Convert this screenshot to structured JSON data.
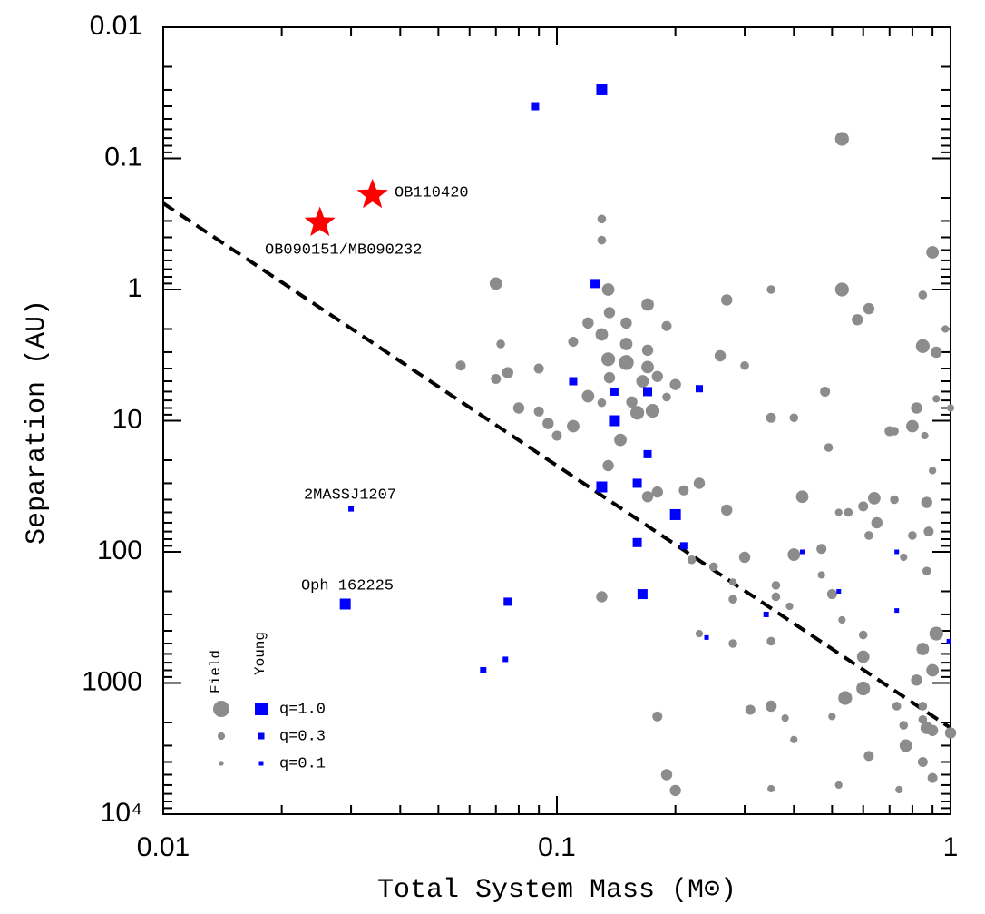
{
  "chart_data": {
    "type": "scatter",
    "xlabel": "Total System Mass (M⊙)",
    "ylabel": "Separation (AU)",
    "xscale": "log",
    "yscale": "log",
    "y_inverted": true,
    "xlim": [
      0.01,
      1
    ],
    "ylim": [
      0.01,
      10000
    ],
    "xticks": [
      0.01,
      0.1,
      1
    ],
    "yticks": [
      0.01,
      0.1,
      1,
      10,
      100,
      1000,
      {
        "value": 10000,
        "label": "10⁴"
      }
    ],
    "xminorticks": [
      0.02,
      0.03,
      0.04,
      0.05,
      0.06,
      0.07,
      0.08,
      0.09,
      0.2,
      0.3,
      0.4,
      0.5,
      0.6,
      0.7,
      0.8,
      0.9
    ],
    "yminorticks": [
      0.02,
      0.03,
      0.04,
      0.05,
      0.06,
      0.07,
      0.08,
      0.09,
      0.2,
      0.3,
      0.4,
      0.5,
      0.6,
      0.7,
      0.8,
      0.9,
      2,
      3,
      4,
      5,
      6,
      7,
      8,
      9,
      20,
      30,
      40,
      50,
      60,
      70,
      80,
      90,
      200,
      300,
      400,
      500,
      600,
      700,
      800,
      900,
      2000,
      3000,
      4000,
      5000,
      6000,
      7000,
      8000,
      9000
    ],
    "series": [
      {
        "name": "Field",
        "color": "#8c8c8c",
        "marker": "circle",
        "x": [
          0.53,
          0.13,
          0.13,
          0.07,
          0.135,
          0.17,
          0.27,
          0.35,
          0.53,
          0.62,
          0.58,
          0.85,
          0.9,
          0.136,
          0.12,
          0.15,
          0.19,
          0.13,
          0.15,
          0.135,
          0.15,
          0.17,
          0.11,
          0.072,
          0.09,
          0.057,
          0.075,
          0.07,
          0.136,
          0.17,
          0.165,
          0.18,
          0.2,
          0.26,
          0.3,
          0.19,
          0.12,
          0.13,
          0.155,
          0.16,
          0.175,
          0.08,
          0.09,
          0.095,
          0.11,
          0.1,
          0.145,
          0.135,
          0.17,
          0.18,
          0.23,
          0.21,
          0.27,
          0.3,
          0.4,
          0.42,
          0.35,
          0.4,
          0.48,
          0.49,
          0.7,
          0.8,
          0.72,
          0.86,
          0.82,
          0.92,
          0.85,
          0.97,
          0.92,
          1.0,
          0.9,
          0.87,
          0.88,
          0.64,
          0.6,
          0.65,
          0.62,
          0.72,
          0.8,
          0.47,
          0.55,
          0.52,
          0.47,
          0.5,
          0.76,
          0.87,
          0.25,
          0.22,
          0.28,
          0.28,
          0.36,
          0.36,
          0.39,
          0.6,
          0.53,
          0.6,
          0.92,
          0.85,
          0.9,
          0.82,
          0.6,
          0.54,
          0.73,
          0.85,
          0.85,
          0.76,
          0.9,
          1.0,
          0.77,
          0.87,
          0.62,
          0.5,
          0.38,
          0.35,
          0.31,
          0.28,
          0.23,
          0.35,
          0.4,
          0.18,
          0.19,
          0.2,
          0.85,
          0.9,
          0.52,
          0.35,
          0.74,
          0.13
        ],
        "y": [
          0.071,
          0.29,
          0.42,
          0.9,
          1.0,
          1.3,
          1.2,
          1.0,
          1.0,
          1.4,
          1.7,
          1.1,
          0.52,
          1.5,
          1.8,
          1.8,
          1.9,
          2.2,
          2.6,
          3.4,
          3.6,
          2.9,
          2.5,
          2.6,
          4,
          3.8,
          4.3,
          4.8,
          4.7,
          3.9,
          5,
          4.6,
          5.3,
          3.2,
          3.8,
          6.6,
          6.5,
          7.3,
          7.2,
          8.7,
          8.4,
          8,
          8.5,
          10.5,
          11,
          13,
          14,
          22,
          38,
          35,
          30,
          34,
          48,
          110,
          105,
          38,
          9.5,
          9.5,
          6,
          16,
          12,
          11,
          12,
          13,
          8,
          3,
          2.7,
          2,
          6.8,
          8,
          24,
          42,
          70,
          39,
          45,
          60,
          75,
          40,
          75,
          95,
          50,
          50,
          150,
          210,
          110,
          140,
          130,
          115,
          230,
          170,
          180,
          220,
          260,
          430,
          330,
          630,
          420,
          550,
          800,
          950,
          1100,
          1300,
          1500,
          1500,
          1900,
          2100,
          2300,
          2400,
          3000,
          2200,
          3600,
          1800,
          1850,
          1500,
          1600,
          500,
          420,
          480,
          2700,
          1800,
          5000,
          6600,
          4000,
          5300,
          6000,
          6400,
          6500,
          220
        ],
        "q": [
          0.8,
          0.4,
          0.4,
          0.7,
          0.7,
          0.7,
          0.6,
          0.4,
          0.8,
          0.6,
          0.6,
          0.4,
          0.7,
          0.6,
          0.6,
          0.6,
          0.5,
          0.7,
          0.7,
          0.8,
          0.9,
          0.6,
          0.5,
          0.4,
          0.5,
          0.5,
          0.6,
          0.5,
          0.6,
          0.7,
          0.7,
          0.6,
          0.6,
          0.6,
          0.4,
          0.4,
          0.7,
          0.4,
          0.6,
          0.8,
          0.8,
          0.6,
          0.5,
          0.6,
          0.7,
          0.5,
          0.7,
          0.6,
          0.6,
          0.6,
          0.6,
          0.5,
          0.6,
          0.6,
          0.7,
          0.7,
          0.5,
          0.4,
          0.5,
          0.4,
          0.5,
          0.7,
          0.4,
          0.3,
          0.6,
          0.6,
          0.8,
          0.3,
          0.3,
          0.3,
          0.3,
          0.6,
          0.5,
          0.7,
          0.5,
          0.6,
          0.4,
          0.4,
          0.4,
          0.5,
          0.4,
          0.3,
          0.3,
          0.5,
          0.3,
          0.4,
          0.4,
          0.4,
          0.4,
          0.3,
          0.4,
          0.4,
          0.3,
          0.4,
          0.3,
          0.7,
          0.8,
          0.7,
          0.7,
          0.6,
          0.8,
          0.8,
          0.4,
          0.4,
          0.4,
          0.4,
          0.6,
          0.6,
          0.7,
          0.7,
          0.5,
          0.3,
          0.3,
          0.6,
          0.5,
          0.4,
          0.3,
          0.4,
          0.3,
          0.5,
          0.6,
          0.6,
          0.5,
          0.5,
          0.3,
          0.3,
          0.3,
          0.6
        ]
      },
      {
        "name": "Young",
        "color": "#0000ff",
        "marker": "square",
        "x": [
          0.13,
          0.088,
          0.125,
          0.11,
          0.14,
          0.17,
          0.23,
          0.14,
          0.17,
          0.13,
          0.16,
          0.2,
          0.16,
          0.21,
          0.165,
          0.075,
          0.029,
          0.03,
          0.074,
          0.065,
          0.24,
          0.34,
          0.42,
          0.52,
          0.73,
          0.73,
          0.99
        ],
        "y": [
          0.03,
          0.04,
          0.9,
          5,
          6,
          6,
          5.7,
          10,
          18,
          32,
          30,
          52,
          85,
          90,
          210,
          240,
          250,
          47,
          660,
          800,
          450,
          300,
          100,
          200,
          100,
          280,
          480
        ],
        "q": [
          0.8,
          0.5,
          0.6,
          0.5,
          0.5,
          0.6,
          0.4,
          0.8,
          0.5,
          0.8,
          0.6,
          0.8,
          0.6,
          0.4,
          0.7,
          0.5,
          0.8,
          0.2,
          0.2,
          0.3,
          0.1,
          0.2,
          0.1,
          0.1,
          0.1,
          0.1,
          0.1
        ]
      },
      {
        "color": "#ff0000",
        "marker": "star",
        "x": [
          0.034,
          0.025
        ],
        "y": [
          0.19,
          0.31
        ]
      }
    ],
    "lines": [
      {
        "color": "#000000",
        "style": "dashed",
        "x": [
          0.01,
          1
        ],
        "y": [
          0.22,
          2200
        ]
      }
    ],
    "annotations": [
      "OB110420",
      "OB090151/MB090232",
      "2MASSJ1207",
      "Oph 162225"
    ],
    "legend": {
      "field": "Field",
      "young": "Young",
      "entries": [
        {
          "label": "q=1.0",
          "q": 1.0
        },
        {
          "label": "q=0.3",
          "q": 0.3
        },
        {
          "label": "q=0.1",
          "q": 0.1
        }
      ]
    }
  }
}
